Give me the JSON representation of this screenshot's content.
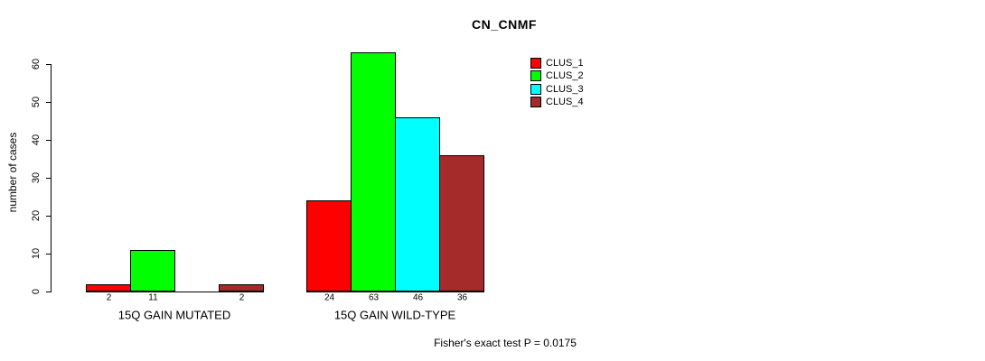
{
  "chart_data": {
    "type": "bar",
    "title": "CN_CNMF",
    "ylabel": "number of cases",
    "xlabel": "",
    "ylim": [
      0,
      63
    ],
    "yticks": [
      0,
      10,
      20,
      30,
      40,
      50,
      60
    ],
    "grid": false,
    "categories": [
      "15Q GAIN MUTATED",
      "15Q GAIN WILD-TYPE"
    ],
    "series": [
      {
        "name": "CLUS_1",
        "color": "#ff0000",
        "values": [
          2,
          24
        ]
      },
      {
        "name": "CLUS_2",
        "color": "#00ff00",
        "values": [
          11,
          63
        ]
      },
      {
        "name": "CLUS_3",
        "color": "#00ffff",
        "values": [
          0,
          46
        ]
      },
      {
        "name": "CLUS_4",
        "color": "#a52a2a",
        "values": [
          2,
          36
        ]
      }
    ],
    "bar_value_labels_shown": [
      "2",
      "11",
      "",
      "2",
      "24",
      "63",
      "46",
      "36"
    ],
    "legend_entries": [
      "CLUS_1",
      "CLUS_2",
      "CLUS_3",
      "CLUS_4"
    ],
    "legend_position": "top-right-inside",
    "annotation": "Fisher's exact test P = 0.0175",
    "bar_border_color": "#000000",
    "axis_color": "#000000"
  }
}
